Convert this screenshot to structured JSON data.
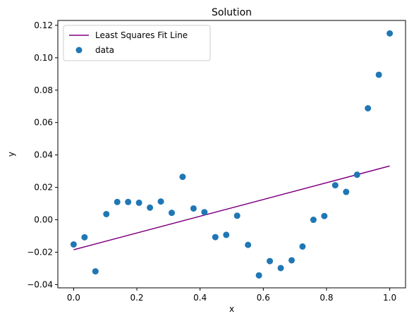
{
  "chart_data": {
    "type": "scatter",
    "title": "Solution",
    "xlabel": "x",
    "ylabel": "y",
    "xlim": [
      -0.05,
      1.05
    ],
    "ylim": [
      -0.042,
      0.123
    ],
    "xticks": [
      0.0,
      0.2,
      0.4,
      0.6,
      0.8,
      1.0
    ],
    "xtick_labels": [
      "0.0",
      "0.2",
      "0.4",
      "0.6",
      "0.8",
      "1.0"
    ],
    "yticks": [
      -0.04,
      -0.02,
      0.0,
      0.02,
      0.04,
      0.06,
      0.08,
      0.1,
      0.12
    ],
    "ytick_labels": [
      "−0.04",
      "−0.02",
      "0.00",
      "0.02",
      "0.04",
      "0.06",
      "0.08",
      "0.10",
      "0.12"
    ],
    "grid": false,
    "legend_position": "top-left",
    "series": [
      {
        "name": "Least Squares Fit Line",
        "kind": "line",
        "color": "#800080",
        "x": [
          0.0,
          1.0
        ],
        "y": [
          -0.0185,
          0.0332
        ]
      },
      {
        "name": "data",
        "kind": "scatter",
        "color": "#1f77b4",
        "x": [
          0.0,
          0.0345,
          0.069,
          0.1034,
          0.1379,
          0.1724,
          0.2069,
          0.2414,
          0.2759,
          0.3103,
          0.3448,
          0.3793,
          0.4138,
          0.4483,
          0.4828,
          0.5172,
          0.5517,
          0.5862,
          0.6207,
          0.6552,
          0.6897,
          0.7241,
          0.7586,
          0.7931,
          0.8276,
          0.8621,
          0.8966,
          0.931,
          0.9655,
          1.0
        ],
        "y": [
          -0.0152,
          -0.0108,
          -0.0318,
          0.0035,
          0.011,
          0.011,
          0.0105,
          0.0075,
          0.0113,
          0.0043,
          0.0265,
          0.007,
          0.0047,
          -0.0107,
          -0.0093,
          0.0025,
          -0.0155,
          -0.0343,
          -0.0255,
          -0.0298,
          -0.025,
          -0.0165,
          0.0,
          0.0023,
          0.0213,
          0.0172,
          0.0278,
          0.0688,
          0.0895,
          0.115
        ]
      }
    ]
  }
}
